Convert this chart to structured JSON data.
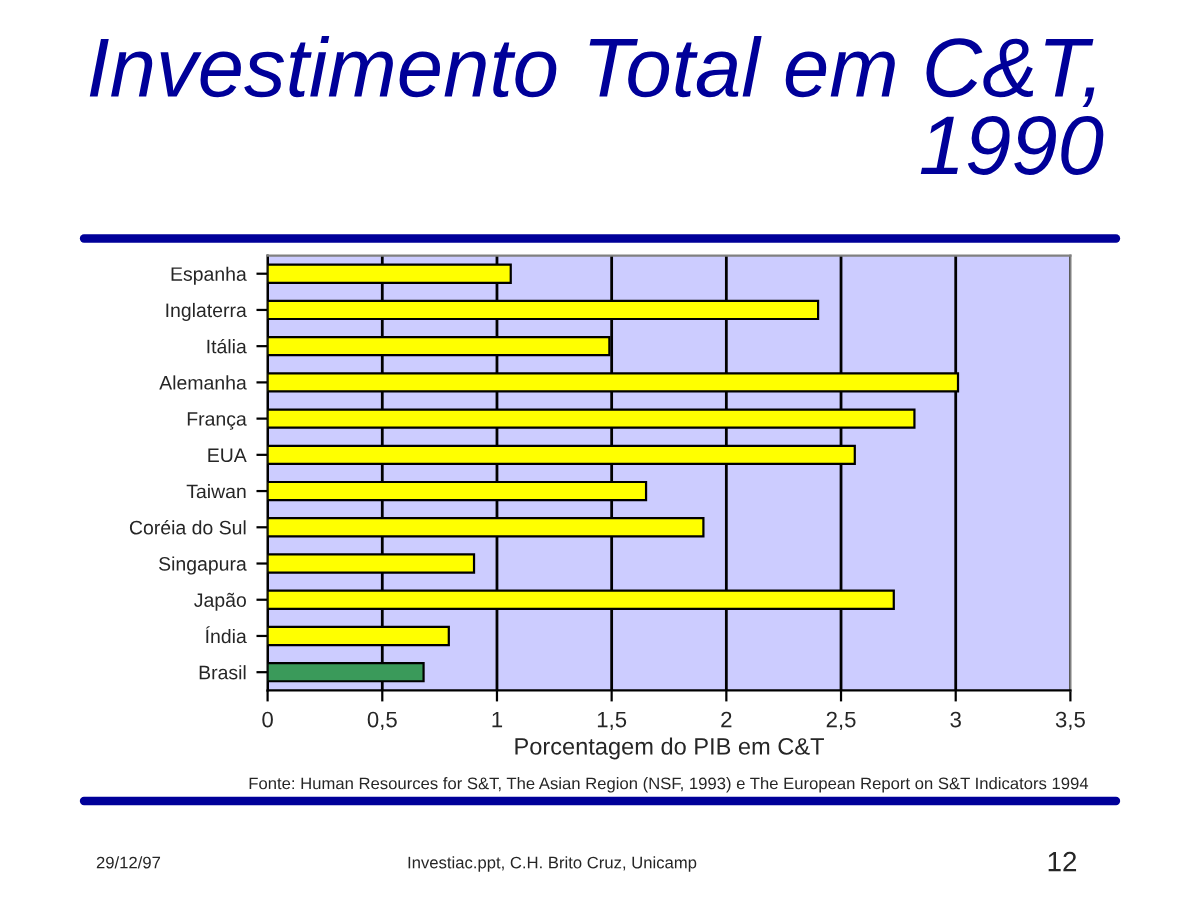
{
  "chart_data": {
    "type": "bar",
    "orientation": "horizontal",
    "title": "Investimento Total em C&T,\n1990",
    "xlabel": "Porcentagem do PIB em C&T",
    "categories": [
      "Espanha",
      "Inglaterra",
      "Itália",
      "Alemanha",
      "França",
      "EUA",
      "Taiwan",
      "Coréia do Sul",
      "Singapura",
      "Japão",
      "Índia",
      "Brasil"
    ],
    "values": [
      1.06,
      2.4,
      1.49,
      3.01,
      2.82,
      2.56,
      1.65,
      1.9,
      0.9,
      2.73,
      0.79,
      0.68
    ],
    "colors": [
      "#ffff00",
      "#ffff00",
      "#ffff00",
      "#ffff00",
      "#ffff00",
      "#ffff00",
      "#ffff00",
      "#ffff00",
      "#ffff00",
      "#ffff00",
      "#ffff00",
      "#3a9a5a"
    ],
    "xlim": [
      0,
      3.5
    ],
    "xticks": [
      0,
      {
        "value": 0.5,
        "label": "0,5"
      },
      1,
      {
        "value": 1.5,
        "label": "1,5"
      },
      2,
      {
        "value": 2.5,
        "label": "2,5"
      },
      3,
      {
        "value": 3.5,
        "label": "3,5"
      }
    ],
    "grid": "x",
    "legend": false,
    "annotations": [
      "Fonte: Human Resources for S&T, The Asian Region (NSF, 1993) e The European Report on S&T Indicators 1994",
      "29/12/97",
      "Investiac.ppt, C.H. Brito Cruz, Unicamp",
      "12"
    ]
  }
}
